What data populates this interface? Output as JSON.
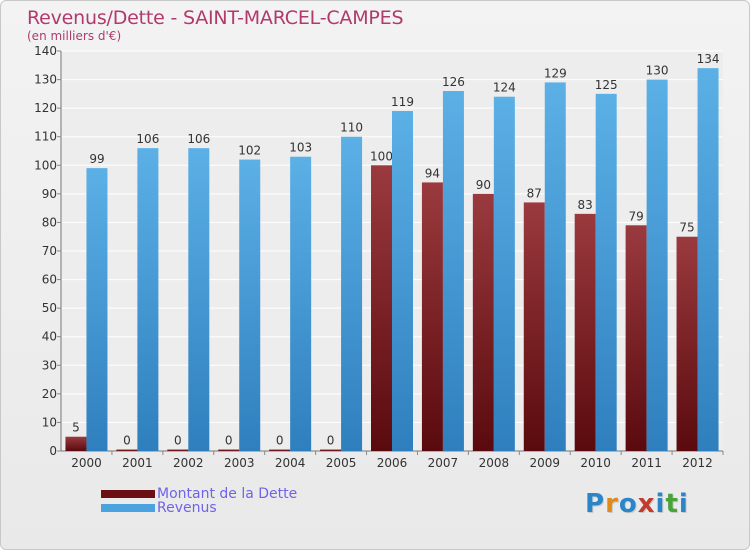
{
  "header": {
    "title": "Revenus/Dette - SAINT-MARCEL-CAMPES",
    "subtitle": "(en milliers d'€)"
  },
  "legend": {
    "items": [
      {
        "label": "Montant de la Dette",
        "color": "#6b0f14"
      },
      {
        "label": "Revenus",
        "color": "#4aa3df"
      }
    ]
  },
  "logo": {
    "text": "Proxiti",
    "colors": [
      "#2a86c8",
      "#e08a1e",
      "#2a86c8",
      "#c23b2e",
      "#2a86c8",
      "#4aa33a",
      "#2a86c8"
    ]
  },
  "chart_data": {
    "type": "bar",
    "title": "Revenus/Dette - SAINT-MARCEL-CAMPES",
    "ylabel": "(en milliers d'€)",
    "ylim": [
      0,
      140
    ],
    "yticks": [
      0,
      10,
      20,
      30,
      40,
      50,
      60,
      70,
      80,
      90,
      100,
      110,
      120,
      130,
      140
    ],
    "grid": true,
    "legend_position": "bottom-left",
    "categories": [
      "2000",
      "2001",
      "2002",
      "2003",
      "2004",
      "2005",
      "2006",
      "2007",
      "2008",
      "2009",
      "2010",
      "2011",
      "2012"
    ],
    "series": [
      {
        "name": "Montant de la Dette",
        "color": "#7a1a1f",
        "values": [
          5,
          0,
          0,
          0,
          0,
          0,
          100,
          94,
          90,
          87,
          83,
          79,
          75
        ]
      },
      {
        "name": "Revenus",
        "color": "#4aa3df",
        "values": [
          99,
          106,
          106,
          102,
          103,
          110,
          119,
          126,
          124,
          129,
          125,
          130,
          134
        ]
      }
    ]
  }
}
